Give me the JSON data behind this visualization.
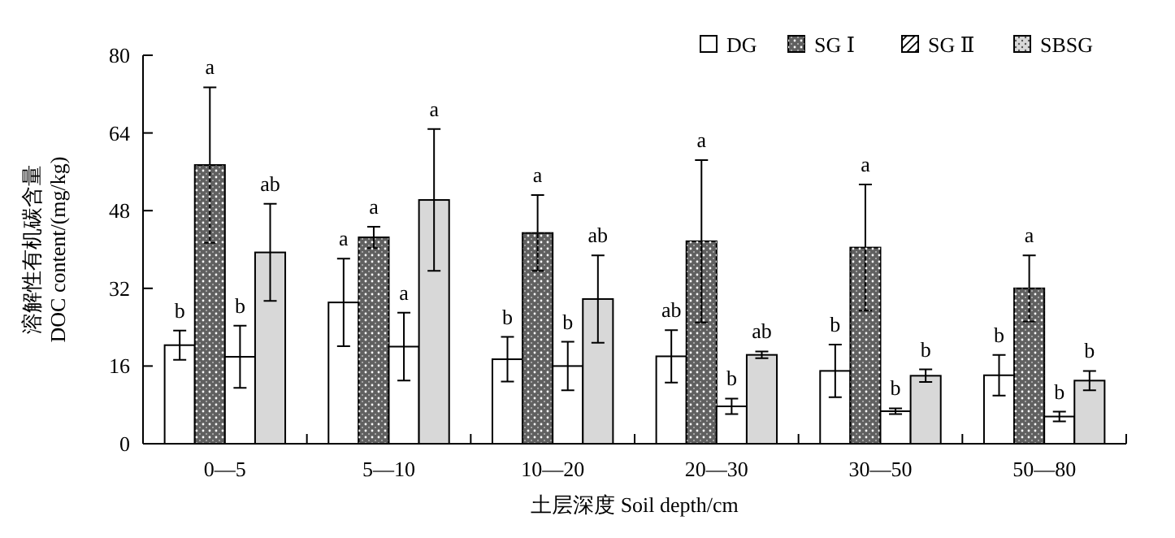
{
  "chart_data": {
    "type": "bar",
    "ylabel": "溶解性有机碳含量\nDOC content/(mg/kg)",
    "xlabel": "土层深度 Soil depth/cm",
    "categories": [
      "0—5",
      "5—10",
      "10—20",
      "20—30",
      "30—50",
      "50—80"
    ],
    "series": [
      {
        "name": "DG",
        "color": "#ffffff",
        "values": [
          20.3,
          29.1,
          17.4,
          18,
          15,
          14.1
        ],
        "errors": [
          3,
          9,
          4.6,
          5.4,
          5.4,
          4.2
        ]
      },
      {
        "name": "SG Ⅰ",
        "color": "#606060",
        "values": [
          57.4,
          42.5,
          43.4,
          41.7,
          40.4,
          32
        ],
        "errors": [
          16,
          2.2,
          7.8,
          16.7,
          13,
          6.8
        ]
      },
      {
        "name": "SG Ⅱ",
        "color": "#ffffff",
        "values": [
          17.9,
          20,
          16,
          7.7,
          6.7,
          5.6
        ],
        "errors": [
          6.4,
          7,
          5,
          1.6,
          0.6,
          1
        ]
      },
      {
        "name": "SBSG",
        "color": "#d8d8d8",
        "values": [
          39.4,
          50.2,
          29.8,
          18.3,
          14,
          13
        ],
        "errors": [
          10,
          14.6,
          9,
          0.7,
          1.3,
          2
        ]
      }
    ],
    "annotations": [
      "b",
      "a",
      "b",
      "ab",
      "a",
      "a",
      "a",
      "a",
      "b",
      "a",
      "b",
      "ab",
      "ab",
      "a",
      "b",
      "ab",
      "b",
      "a",
      "b",
      "b",
      "b",
      "a",
      "b",
      "b"
    ],
    "ylim": [
      0,
      80
    ],
    "yticks": [
      0,
      16,
      32,
      48,
      64,
      80
    ],
    "legend": "top right",
    "grid": false
  }
}
